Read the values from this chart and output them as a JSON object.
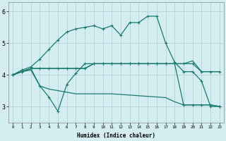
{
  "xlabel": "Humidex (Indice chaleur)",
  "bg_color": "#d4edf0",
  "grid_color": "#aecdd4",
  "line_color": "#1a7a6e",
  "ylim": [
    2.5,
    6.3
  ],
  "xlim": [
    -0.5,
    23.5
  ],
  "yticks": [
    3,
    4,
    5,
    6
  ],
  "x_ticks": [
    0,
    1,
    2,
    3,
    4,
    5,
    6,
    7,
    8,
    9,
    10,
    11,
    12,
    13,
    14,
    15,
    16,
    17,
    18,
    19,
    20,
    21,
    22,
    23
  ],
  "line_upper_x": [
    0,
    1,
    2,
    3,
    4,
    5,
    6,
    7,
    8,
    9,
    10,
    11,
    12,
    13,
    14,
    15,
    16,
    17,
    18,
    19,
    20,
    21,
    22,
    23
  ],
  "line_upper_y": [
    4.0,
    4.15,
    4.25,
    4.5,
    4.8,
    5.1,
    5.35,
    5.45,
    5.5,
    5.55,
    5.45,
    5.55,
    5.25,
    5.65,
    5.65,
    5.85,
    5.85,
    5.0,
    4.4,
    4.1,
    4.1,
    3.8,
    3.0,
    3.0
  ],
  "line_flat1_x": [
    0,
    1,
    2,
    3,
    4,
    5,
    6,
    7,
    8,
    9,
    10,
    11,
    12,
    13,
    14,
    15,
    16,
    17,
    18,
    19,
    20,
    21,
    22,
    23
  ],
  "line_flat1_y": [
    4.0,
    4.1,
    4.2,
    4.2,
    4.2,
    4.2,
    4.2,
    4.2,
    4.2,
    4.35,
    4.35,
    4.35,
    4.35,
    4.35,
    4.35,
    4.35,
    4.35,
    4.35,
    4.35,
    4.35,
    4.35,
    4.1,
    4.1,
    4.1
  ],
  "line_flat2_x": [
    0,
    1,
    2,
    3,
    4,
    5,
    6,
    7,
    8,
    9,
    10,
    11,
    12,
    13,
    14,
    15,
    16,
    17,
    18,
    19,
    20,
    21,
    22,
    23
  ],
  "line_flat2_y": [
    4.0,
    4.1,
    4.2,
    4.2,
    4.2,
    4.2,
    4.2,
    4.2,
    4.2,
    4.35,
    4.35,
    4.35,
    4.35,
    4.35,
    4.35,
    4.35,
    4.35,
    4.35,
    4.35,
    4.35,
    4.44,
    4.1,
    4.1,
    4.1
  ],
  "line_lower_dip_x": [
    0,
    1,
    2,
    3,
    4,
    5,
    6,
    7,
    8,
    9,
    10,
    11,
    12,
    13,
    14,
    15,
    16,
    17,
    18,
    19,
    20,
    21,
    22,
    23
  ],
  "line_lower_dip_y": [
    4.0,
    4.1,
    4.2,
    3.65,
    3.3,
    2.85,
    3.7,
    4.05,
    4.35,
    4.35,
    4.35,
    4.35,
    4.35,
    4.35,
    4.35,
    4.35,
    4.35,
    4.35,
    4.35,
    3.05,
    3.05,
    3.05,
    3.05,
    3.0
  ],
  "line_lower_flat_x": [
    0,
    1,
    2,
    3,
    4,
    5,
    6,
    7,
    8,
    9,
    10,
    11,
    12,
    13,
    14,
    15,
    16,
    17,
    18,
    19,
    20,
    21,
    22,
    23
  ],
  "line_lower_flat_y": [
    4.0,
    4.1,
    4.15,
    3.65,
    3.55,
    3.5,
    3.45,
    3.4,
    3.4,
    3.4,
    3.4,
    3.4,
    3.38,
    3.36,
    3.34,
    3.32,
    3.3,
    3.28,
    3.15,
    3.05,
    3.05,
    3.05,
    3.05,
    3.0
  ]
}
